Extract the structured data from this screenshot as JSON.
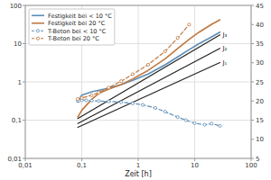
{
  "chart_data": {
    "type": "line",
    "xlabel": "Zeit [h]",
    "log": true,
    "grid": true,
    "legend": "upper left",
    "xlim": [
      0.01,
      100
    ],
    "xticks": [
      {
        "value": 0.01,
        "label": "0,01"
      },
      {
        "value": 0.1,
        "label": "0,1"
      },
      1,
      10,
      100
    ],
    "ylim": [
      0.01,
      100
    ],
    "yticks": [
      {
        "value": 0.01,
        "label": "0,01"
      },
      {
        "value": 0.1,
        "label": "0,1"
      },
      1,
      10,
      100
    ],
    "y2lim": [
      5,
      45
    ],
    "y2ticks": [
      5,
      10,
      15,
      20,
      25,
      30,
      35,
      40,
      45
    ],
    "series": [
      {
        "name": "Festigkeit bei < 10 °C",
        "color": "#5b8db8",
        "line_style": "solid",
        "x": [
          0.085,
          0.1,
          0.15,
          0.25,
          0.5,
          0.8,
          1.5,
          3.0,
          5.0,
          8.0,
          12.0,
          20.0,
          28.0
        ],
        "values": [
          0.3,
          0.45,
          0.55,
          0.65,
          0.85,
          1.1,
          1.6,
          2.8,
          4.5,
          7.0,
          10.0,
          15.0,
          20.0
        ]
      },
      {
        "name": "Festigkeit bei 20 °C",
        "color": "#c07840",
        "line_style": "solid",
        "x": [
          0.085,
          0.1,
          0.15,
          0.2,
          0.3,
          0.5,
          0.8,
          1.5,
          3.0,
          5.0,
          8.0,
          12.0,
          20.0,
          28.0
        ],
        "values": [
          0.12,
          0.18,
          0.35,
          0.5,
          0.65,
          0.85,
          1.2,
          2.0,
          4.0,
          7.5,
          13.0,
          20.0,
          32.0,
          42.0
        ]
      },
      {
        "name": "T-Beton bei < 10 °C",
        "color": "#5b8db8",
        "axis": "y2",
        "line_style": "dashed",
        "marker": "circle",
        "x": [
          0.085,
          0.09,
          0.1,
          0.12,
          0.15,
          0.2,
          0.3,
          0.5,
          0.8,
          1.2,
          2.0,
          3.0,
          5.0,
          7.0,
          10.0,
          15.0,
          20.0,
          28.0
        ],
        "values": [
          20.0,
          20.1,
          20.2,
          20.2,
          20.1,
          20.0,
          19.9,
          19.7,
          19.4,
          19.0,
          18.2,
          17.2,
          15.8,
          15.0,
          14.2,
          13.8,
          14.1,
          13.5
        ]
      },
      {
        "name": "T-Beton bei 20 °C",
        "color": "#c07840",
        "axis": "y2",
        "line_style": "dashed",
        "marker": "circle",
        "x": [
          0.085,
          0.1,
          0.15,
          0.2,
          0.3,
          0.5,
          0.8,
          1.5,
          3.0,
          5.0,
          8.0
        ],
        "values": [
          20.5,
          20.8,
          21.5,
          22.2,
          23.5,
          25.2,
          27.0,
          29.5,
          33.0,
          36.5,
          40.0
        ]
      }
    ],
    "annotations": [
      {
        "text": "J₁",
        "x": [
          0.085,
          28
        ],
        "y": [
          0.065,
          3.2
        ]
      },
      {
        "text": "J₂",
        "x": [
          0.085,
          28
        ],
        "y": [
          0.082,
          7.5
        ]
      },
      {
        "text": "J₃",
        "x": [
          0.085,
          28
        ],
        "y": [
          0.11,
          17.0
        ]
      }
    ]
  }
}
